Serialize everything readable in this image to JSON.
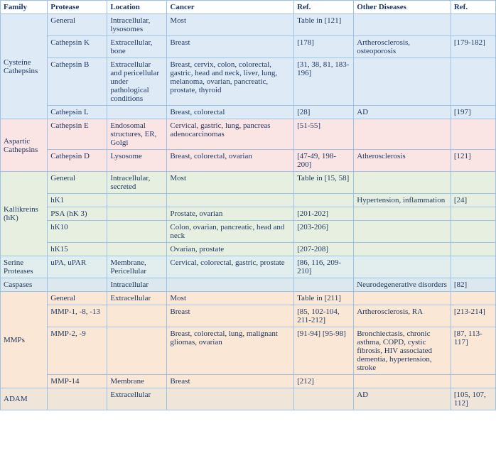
{
  "columns": [
    "Family",
    "Protease",
    "Location",
    "Cancer",
    "Ref.",
    "Other Diseases",
    "Ref."
  ],
  "families": [
    {
      "name": "Cysteine Cathepsins",
      "cls": "bg-blue",
      "rows": [
        {
          "protease": "General",
          "location": "Intracellular, lysosomes",
          "cancer": "Most",
          "ref1": "Table in [121]",
          "other": "",
          "ref2": ""
        },
        {
          "protease": "Cathepsin K",
          "location": "Extracellular, bone",
          "cancer": "Breast",
          "ref1": "[178]",
          "other": "Artherosclerosis, osteoporosis",
          "ref2": "[179-182]"
        },
        {
          "protease": "Cathepsin B",
          "location": "Extracellular and pericellular under pathological conditions",
          "cancer": "Breast,  cervix, colon, colorectal, gastric, head and neck, liver, lung,  melanoma, ovarian,  pancreatic, prostate, thyroid",
          "ref1": "[31, 38, 81, 183-196]",
          "other": "",
          "ref2": ""
        },
        {
          "protease": "Cathepsin L",
          "location": "",
          "cancer": "Breast, colorectal",
          "ref1": "[28]",
          "other": "AD",
          "ref2": "[197]"
        }
      ]
    },
    {
      "name": "Aspartic Cathepsins",
      "cls": "bg-pink",
      "rows": [
        {
          "protease": "Cathepsin E",
          "location": "Endosomal structures, ER, Golgi",
          "cancer": "Cervical, gastric, lung, pancreas adenocarcinomas",
          "ref1": "[51-55]",
          "other": "",
          "ref2": ""
        },
        {
          "protease": "Cathepsin D",
          "location": "Lysosome",
          "cancer": "Breast, colorectal, ovarian",
          "ref1": "[47-49, 198-200]",
          "other": "Atherosclerosis",
          "ref2": "[121]"
        }
      ]
    },
    {
      "name": "Kallikreins (hK)",
      "cls": "bg-green",
      "rows": [
        {
          "protease": "General",
          "location": "Intracellular, secreted",
          "cancer": "Most",
          "ref1": "Table in [15, 58]",
          "other": "",
          "ref2": ""
        },
        {
          "protease": "hK1",
          "location": "",
          "cancer": "",
          "ref1": "",
          "other": "Hypertension, inflammation",
          "ref2": "[24]"
        },
        {
          "protease": "PSA (hK 3)",
          "location": "",
          "cancer": "Prostate, ovarian",
          "ref1": "[201-202]",
          "other": "",
          "ref2": ""
        },
        {
          "protease": "hK10",
          "location": "",
          "cancer": "Colon, ovarian, pancreatic, head and neck",
          "ref1": "[203-206]",
          "other": "",
          "ref2": ""
        },
        {
          "protease": "hK15",
          "location": "",
          "cancer": "Ovarian, prostate",
          "ref1": "[207-208]",
          "other": "",
          "ref2": ""
        }
      ]
    },
    {
      "name": "Serine Proteases",
      "cls": "bg-teal",
      "rows": [
        {
          "protease": "uPA, uPAR",
          "location": "Membrane, Pericellular",
          "cancer": "Cervical, colorectal, gastric, prostate",
          "ref1": "[86, 116, 209-210]",
          "other": "",
          "ref2": ""
        }
      ]
    },
    {
      "name": "Caspases",
      "cls": "bg-blue2",
      "rows": [
        {
          "protease": "",
          "location": "Intracellular",
          "cancer": "",
          "ref1": "",
          "other": "Neurodegenerative disorders",
          "ref2": "[82]"
        }
      ]
    },
    {
      "name": "MMPs",
      "cls": "bg-orange",
      "rows": [
        {
          "protease": "General",
          "location": "Extracellular",
          "cancer": "Most",
          "ref1": "Table in [211]",
          "other": "",
          "ref2": ""
        },
        {
          "protease": "MMP-1, -8, -13",
          "location": "",
          "cancer": "Breast",
          "ref1": "[85, 102-104, 211-212]",
          "other": "Artherosclerosis, RA",
          "ref2": "[213-214]"
        },
        {
          "protease": "MMP-2, -9",
          "location": "",
          "cancer": "Breast, colorectal, lung, malignant gliomas, ovarian",
          "ref1": "[91-94] [95-98]",
          "other": "Bronchiectasis, chronic asthma, COPD, cystic fibrosis, HIV associated dementia, hypertension, stroke",
          "ref2": "[87, 113-117]"
        },
        {
          "protease": "MMP-14",
          "location": "Membrane",
          "cancer": "Breast",
          "ref1": "[212]",
          "other": "",
          "ref2": ""
        }
      ]
    },
    {
      "name": "ADAM",
      "cls": "bg-tan",
      "rows": [
        {
          "protease": "",
          "location": "Extracellular",
          "cancer": "",
          "ref1": "",
          "other": "AD",
          "ref2": "[105, 107, 112]"
        }
      ]
    }
  ]
}
